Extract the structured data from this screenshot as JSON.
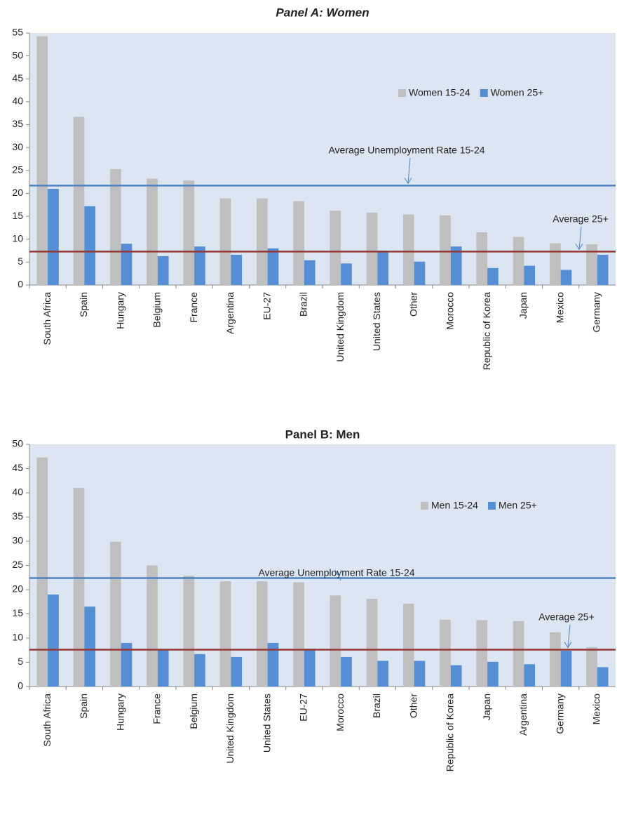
{
  "chart_data": [
    {
      "type": "bar",
      "title": "Panel A: Women",
      "categories": [
        "South Africa",
        "Spain",
        "Hungary",
        "Belgium",
        "France",
        "Argentina",
        "EU-27",
        "Brazil",
        "United Kingdom",
        "United States",
        "Other",
        "Morocco",
        "Republic of Korea",
        "Japan",
        "Mexico",
        "Germany"
      ],
      "series": [
        {
          "name": "Women 15-24",
          "color": "#bfbfbf",
          "values": [
            54.3,
            36.7,
            25.3,
            23.2,
            22.8,
            18.9,
            18.9,
            18.3,
            16.2,
            15.8,
            15.4,
            15.2,
            11.5,
            10.5,
            9.1,
            8.9
          ]
        },
        {
          "name": "Women 25+",
          "color": "#558ed5",
          "values": [
            21.0,
            17.2,
            9.0,
            6.3,
            8.4,
            6.6,
            8.0,
            5.4,
            4.7,
            7.5,
            5.1,
            8.4,
            3.7,
            4.2,
            3.3,
            6.6
          ]
        }
      ],
      "reference_lines": [
        {
          "label": "Average Unemployment Rate 15-24",
          "value": 21.7,
          "color": "#4f81bd"
        },
        {
          "label": "Average 25+",
          "value": 7.3,
          "color": "#953735"
        }
      ],
      "ylim": [
        0,
        55
      ],
      "yticks": [
        0,
        5,
        10,
        15,
        20,
        25,
        30,
        35,
        40,
        45,
        50,
        55
      ],
      "legend": "upper right"
    },
    {
      "type": "bar",
      "title": "Panel B: Men",
      "categories": [
        "South Africa",
        "Spain",
        "Hungary",
        "France",
        "Belgium",
        "United Kingdom",
        "United States",
        "EU-27",
        "Morocco",
        "Brazil",
        "Other",
        "Republic of Korea",
        "Japan",
        "Argentina",
        "Germany",
        "Mexico"
      ],
      "series": [
        {
          "name": "Men 15-24",
          "color": "#bfbfbf",
          "values": [
            47.3,
            41.0,
            29.9,
            25.0,
            22.9,
            21.7,
            21.7,
            21.5,
            18.8,
            18.1,
            17.1,
            13.8,
            13.7,
            13.5,
            11.2,
            8.1
          ]
        },
        {
          "name": "Men 25+",
          "color": "#558ed5",
          "values": [
            19.0,
            16.5,
            9.0,
            7.6,
            6.7,
            6.1,
            9.0,
            7.8,
            6.1,
            5.3,
            5.3,
            4.4,
            5.1,
            4.6,
            7.4,
            4.0
          ]
        }
      ],
      "reference_lines": [
        {
          "label": "Average Unemployment Rate 15-24",
          "value": 22.4,
          "color": "#4f81bd"
        },
        {
          "label": "Average 25+",
          "value": 7.6,
          "color": "#953735"
        }
      ],
      "ylim": [
        0,
        50
      ],
      "yticks": [
        0,
        5,
        10,
        15,
        20,
        25,
        30,
        35,
        40,
        45,
        50
      ],
      "legend": "upper right"
    }
  ]
}
